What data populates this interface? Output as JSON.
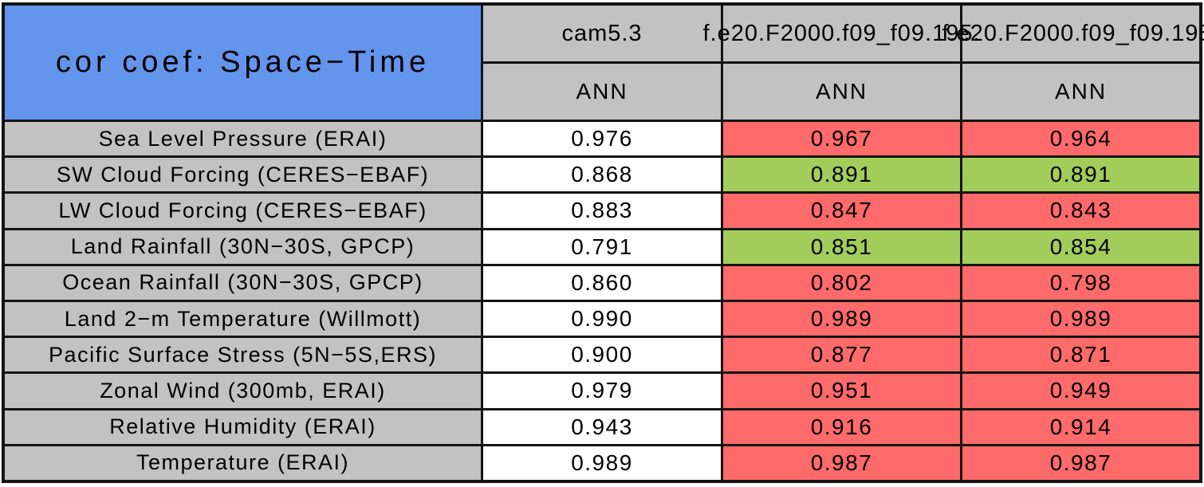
{
  "colors": {
    "title_bg": "#6495ed",
    "header_bg": "#c2c2c2",
    "base_bg": "#ffffff",
    "worse_bg": "#ff6a6a",
    "better_bg": "#a2cd5a",
    "border": "#141414",
    "text": "#000000"
  },
  "chart_data": {
    "type": "table",
    "title": "cor coef: Space−Time",
    "columns": [
      {
        "model": "cam5.3",
        "season": "ANN"
      },
      {
        "model": "f.e20.F2000.f09_f09.195.",
        "season": "ANN"
      },
      {
        "model": "f.e20.F2000.f09_f09.195.",
        "season": "ANN"
      }
    ],
    "legend": {
      "white_means": "baseline value",
      "red_means": "worse than baseline",
      "green_means": "better than baseline"
    },
    "rows": [
      {
        "label": "Sea Level Pressure (ERAI)",
        "cells": [
          {
            "value": "0.976",
            "status": "base"
          },
          {
            "value": "0.967",
            "status": "worse"
          },
          {
            "value": "0.964",
            "status": "worse"
          }
        ]
      },
      {
        "label": "SW Cloud Forcing (CERES−EBAF)",
        "cells": [
          {
            "value": "0.868",
            "status": "base"
          },
          {
            "value": "0.891",
            "status": "better"
          },
          {
            "value": "0.891",
            "status": "better"
          }
        ]
      },
      {
        "label": "LW Cloud Forcing (CERES−EBAF)",
        "cells": [
          {
            "value": "0.883",
            "status": "base"
          },
          {
            "value": "0.847",
            "status": "worse"
          },
          {
            "value": "0.843",
            "status": "worse"
          }
        ]
      },
      {
        "label": "Land Rainfall (30N−30S, GPCP)",
        "cells": [
          {
            "value": "0.791",
            "status": "base"
          },
          {
            "value": "0.851",
            "status": "better"
          },
          {
            "value": "0.854",
            "status": "better"
          }
        ]
      },
      {
        "label": "Ocean Rainfall (30N−30S, GPCP)",
        "cells": [
          {
            "value": "0.860",
            "status": "base"
          },
          {
            "value": "0.802",
            "status": "worse"
          },
          {
            "value": "0.798",
            "status": "worse"
          }
        ]
      },
      {
        "label": "Land 2−m Temperature (Willmott)",
        "cells": [
          {
            "value": "0.990",
            "status": "base"
          },
          {
            "value": "0.989",
            "status": "worse"
          },
          {
            "value": "0.989",
            "status": "worse"
          }
        ]
      },
      {
        "label": "Pacific Surface Stress (5N−5S,ERS)",
        "cells": [
          {
            "value": "0.900",
            "status": "base"
          },
          {
            "value": "0.877",
            "status": "worse"
          },
          {
            "value": "0.871",
            "status": "worse"
          }
        ]
      },
      {
        "label": "Zonal Wind (300mb, ERAI)",
        "cells": [
          {
            "value": "0.979",
            "status": "base"
          },
          {
            "value": "0.951",
            "status": "worse"
          },
          {
            "value": "0.949",
            "status": "worse"
          }
        ]
      },
      {
        "label": "Relative Humidity (ERAI)",
        "cells": [
          {
            "value": "0.943",
            "status": "base"
          },
          {
            "value": "0.916",
            "status": "worse"
          },
          {
            "value": "0.914",
            "status": "worse"
          }
        ]
      },
      {
        "label": "Temperature (ERAI)",
        "cells": [
          {
            "value": "0.989",
            "status": "base"
          },
          {
            "value": "0.987",
            "status": "worse"
          },
          {
            "value": "0.987",
            "status": "worse"
          }
        ]
      }
    ]
  }
}
